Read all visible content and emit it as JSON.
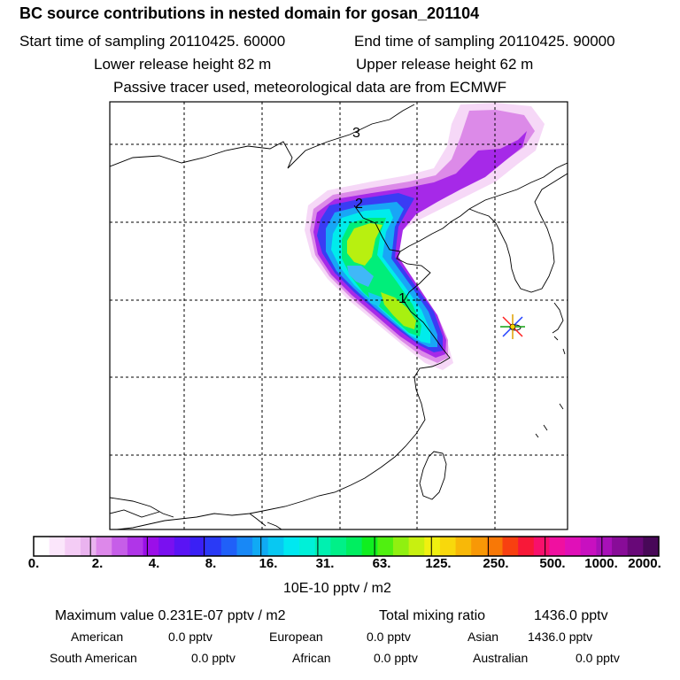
{
  "header": {
    "title": "BC  source contributions in nested domain for gosan_201104",
    "start_label": "Start time of sampling 20110425. 60000",
    "end_label": "End time of sampling 20110425. 90000",
    "lower_label": "Lower release height   82 m",
    "upper_label": "Upper release height   62 m",
    "tracer_label": "Passive tracer used, meteorological data are from ECMWF"
  },
  "map": {
    "trajectory_labels": [
      "3",
      "2",
      "1"
    ],
    "receptor": "station-star-marker"
  },
  "colorbar": {
    "ticks": [
      "0.",
      "2.",
      "4.",
      "8.",
      "16.",
      "31.",
      "63.",
      "125.",
      "250.",
      "500.",
      "1000.",
      "2000."
    ],
    "unit": "10E-10 pptv / m2",
    "colors": [
      "#ffffff",
      "#fbe6fb",
      "#f4ccf5",
      "#eab3ef",
      "#dd88ea",
      "#c65ee8",
      "#b035e8",
      "#9b0fe9",
      "#7a10f0",
      "#5a14f4",
      "#3a20f5",
      "#2a3af6",
      "#2060f8",
      "#1888f6",
      "#10aaf4",
      "#08c8f2",
      "#00e8f0",
      "#00f0d8",
      "#00f0b0",
      "#00f088",
      "#00ee60",
      "#10ee20",
      "#50f010",
      "#90f010",
      "#c8f010",
      "#f0f010",
      "#f8d80c",
      "#f8b808",
      "#f89806",
      "#f87806",
      "#f84010",
      "#f81838",
      "#f8106c",
      "#f010a0",
      "#e010b8",
      "#c810c0",
      "#a810b8",
      "#880c98",
      "#680878",
      "#480858"
    ]
  },
  "stats": {
    "max_label": "Maximum value  0.231E-07 pptv / m2",
    "total_label": "Total mixing ratio",
    "total_value": "1436.0 pptv",
    "regions": [
      {
        "name": "American",
        "value": "0.0 pptv"
      },
      {
        "name": "European",
        "value": "0.0 pptv"
      },
      {
        "name": "Asian",
        "value": "1436.0 pptv"
      },
      {
        "name": "South American",
        "value": "0.0 pptv"
      },
      {
        "name": "African",
        "value": "0.0 pptv"
      },
      {
        "name": "Australian",
        "value": "0.0 pptv"
      }
    ]
  }
}
